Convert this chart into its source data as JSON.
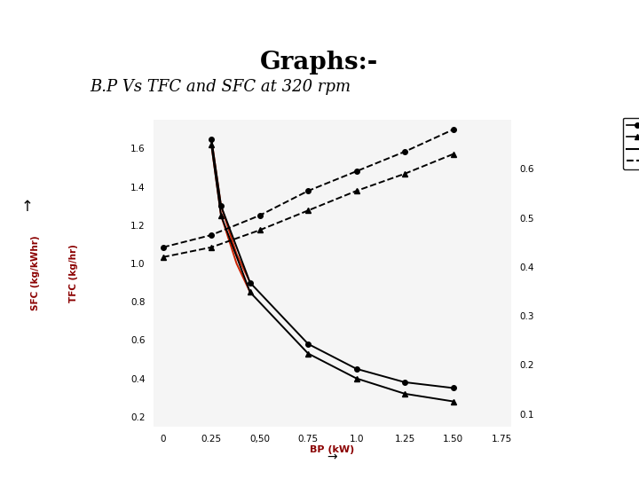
{
  "title": "Graphs:-",
  "subtitle": "B.P Vs TFC and SFC at 320 rpm",
  "title_fontsize": 20,
  "subtitle_fontsize": 13,
  "bg_color": "#ffffff",
  "sfc_6stroke_bp": [
    0.25,
    0.3,
    0.45,
    0.75,
    1.0,
    1.25,
    1.5
  ],
  "sfc_6stroke_sfc": [
    1.65,
    1.3,
    0.9,
    0.58,
    0.45,
    0.38,
    0.35
  ],
  "sfc_4stroke_bp": [
    0.25,
    0.3,
    0.45,
    0.75,
    1.0,
    1.25,
    1.5
  ],
  "sfc_4stroke_sfc": [
    1.62,
    1.25,
    0.85,
    0.53,
    0.4,
    0.32,
    0.28
  ],
  "tfc_6stroke_bp": [
    0.0,
    0.25,
    0.5,
    0.75,
    1.0,
    1.25,
    1.5
  ],
  "tfc_6stroke_tfc": [
    0.44,
    0.465,
    0.505,
    0.555,
    0.595,
    0.635,
    0.68
  ],
  "tfc_4stroke_bp": [
    0.0,
    0.25,
    0.5,
    0.75,
    1.0,
    1.25,
    1.5
  ],
  "tfc_4stroke_tfc": [
    0.42,
    0.44,
    0.475,
    0.515,
    0.555,
    0.59,
    0.63
  ],
  "xlabel": "BP (kW)",
  "ylabel_left": "SFC (kg/kWhr)",
  "ylabel_right": "TFC (kg/hr)",
  "xlim": [
    -0.05,
    1.8
  ],
  "xticks": [
    0,
    0.25,
    0.5,
    0.75,
    1.0,
    1.25,
    1.5,
    1.75
  ],
  "xticklabels": [
    "0",
    "0.25",
    "0,50",
    "0.75",
    "1.0",
    "1.25",
    "1.50",
    "1.75"
  ],
  "ylim_left": [
    0.15,
    1.75
  ],
  "yticks_left": [
    0.2,
    0.4,
    0.6,
    0.8,
    1.0,
    1.2,
    1.4,
    1.6
  ],
  "ylim_right": [
    0.075,
    0.7
  ],
  "yticks_right": [
    0.1,
    0.2,
    0.3,
    0.4,
    0.5,
    0.6
  ],
  "color_black": "#1a1a1a",
  "color_red_highlight": "#cc2200",
  "sfc_red_6_bp": [
    0.25,
    0.3,
    0.38,
    0.45
  ],
  "sfc_red_6_sfc": [
    1.65,
    1.3,
    1.05,
    0.9
  ],
  "sfc_red_4_bp": [
    0.25,
    0.3,
    0.38,
    0.45
  ],
  "sfc_red_4_sfc": [
    1.62,
    1.25,
    1.0,
    0.85
  ]
}
